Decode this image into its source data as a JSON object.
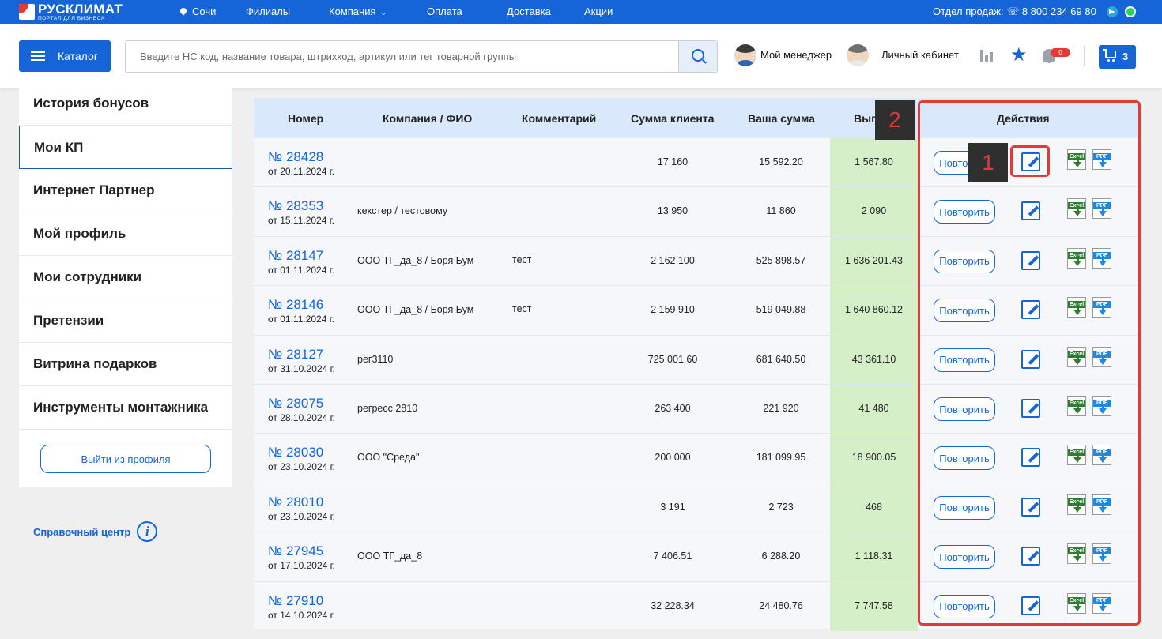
{
  "topbar": {
    "logo_title": "РУСКЛИМАТ",
    "logo_sub": "ПОРТАЛ ДЛЯ БИЗНЕСА",
    "city": "Сочи",
    "nav": [
      "Филиалы",
      "Компания",
      "Оплата",
      "Доставка",
      "Акции"
    ],
    "sales_label": "Отдел продаж:",
    "phone": "8 800 234 69 80"
  },
  "header": {
    "catalog_label": "Каталог",
    "search_placeholder": "Введите НС код, название товара, штрихкод, артикул или тег товарной группы",
    "manager_label": "Мой менеджер",
    "cabinet_label": "Личный кабинет",
    "notifications_count": "0",
    "cart_count": "3"
  },
  "sidebar": {
    "items": [
      "История бонусов",
      "Мои КП",
      "Интернет Партнер",
      "Мой профиль",
      "Мои сотрудники",
      "Претензии",
      "Витрина подарков",
      "Инструменты монтажника"
    ],
    "active_item": "Мои КП",
    "logout_label": "Выйти из профиля",
    "help_label": "Справочный центр",
    "help_icon_glyph": "i"
  },
  "table": {
    "headers": [
      "Номер",
      "Компания / ФИО",
      "Комментарий",
      "Сумма клиента",
      "Ваша сумма",
      "Выгода",
      "Действия"
    ],
    "repeat_label": "Повторить",
    "excel_label": "Excel",
    "pdf_label": "PDF",
    "rows": [
      {
        "number": "№ 28428",
        "date": "от 20.11.2024 г.",
        "company": "",
        "comment": "",
        "client_sum": "17 160",
        "your_sum": "15 592.20",
        "benefit": "1 567.80"
      },
      {
        "number": "№ 28353",
        "date": "от 15.11.2024 г.",
        "company": "кекстер / тестовому",
        "comment": "",
        "client_sum": "13 950",
        "your_sum": "11 860",
        "benefit": "2 090"
      },
      {
        "number": "№ 28147",
        "date": "от 01.11.2024 г.",
        "company": "ООО ТГ_да_8 / Боря Бум",
        "comment": "тест",
        "client_sum": "2 162 100",
        "your_sum": "525 898.57",
        "benefit": "1 636 201.43"
      },
      {
        "number": "№ 28146",
        "date": "от 01.11.2024 г.",
        "company": "ООО ТГ_да_8 / Боря Бум",
        "comment": "тест",
        "client_sum": "2 159 910",
        "your_sum": "519 049.88",
        "benefit": "1 640 860.12"
      },
      {
        "number": "№ 28127",
        "date": "от 31.10.2024 г.",
        "company": "рег3110",
        "comment": "",
        "client_sum": "725 001.60",
        "your_sum": "681 640.50",
        "benefit": "43 361.10"
      },
      {
        "number": "№ 28075",
        "date": "от 28.10.2024 г.",
        "company": "регресс 2810",
        "comment": "",
        "client_sum": "263 400",
        "your_sum": "221 920",
        "benefit": "41 480"
      },
      {
        "number": "№ 28030",
        "date": "от 23.10.2024 г.",
        "company": "ООО \"Среда\"",
        "comment": "",
        "client_sum": "200 000",
        "your_sum": "181 099.95",
        "benefit": "18 900.05"
      },
      {
        "number": "№ 28010",
        "date": "от 23.10.2024 г.",
        "company": "",
        "comment": "",
        "client_sum": "3 191",
        "your_sum": "2 723",
        "benefit": "468"
      },
      {
        "number": "№ 27945",
        "date": "от 17.10.2024 г.",
        "company": "ООО ТГ_да_8",
        "comment": "",
        "client_sum": "7 406.51",
        "your_sum": "6 288.20",
        "benefit": "1 118.31"
      },
      {
        "number": "№ 27910",
        "date": "от 14.10.2024 г.",
        "company": "",
        "comment": "",
        "client_sum": "32 228.34",
        "your_sum": "24 480.76",
        "benefit": "7 747.58"
      }
    ]
  },
  "annotations": {
    "marker_1": "1",
    "marker_2": "2",
    "color": "#e53935"
  },
  "colors": {
    "brand": "#1565d8",
    "benefit_bg": "#d5f0c9",
    "header_bg": "#d9e8fa"
  }
}
